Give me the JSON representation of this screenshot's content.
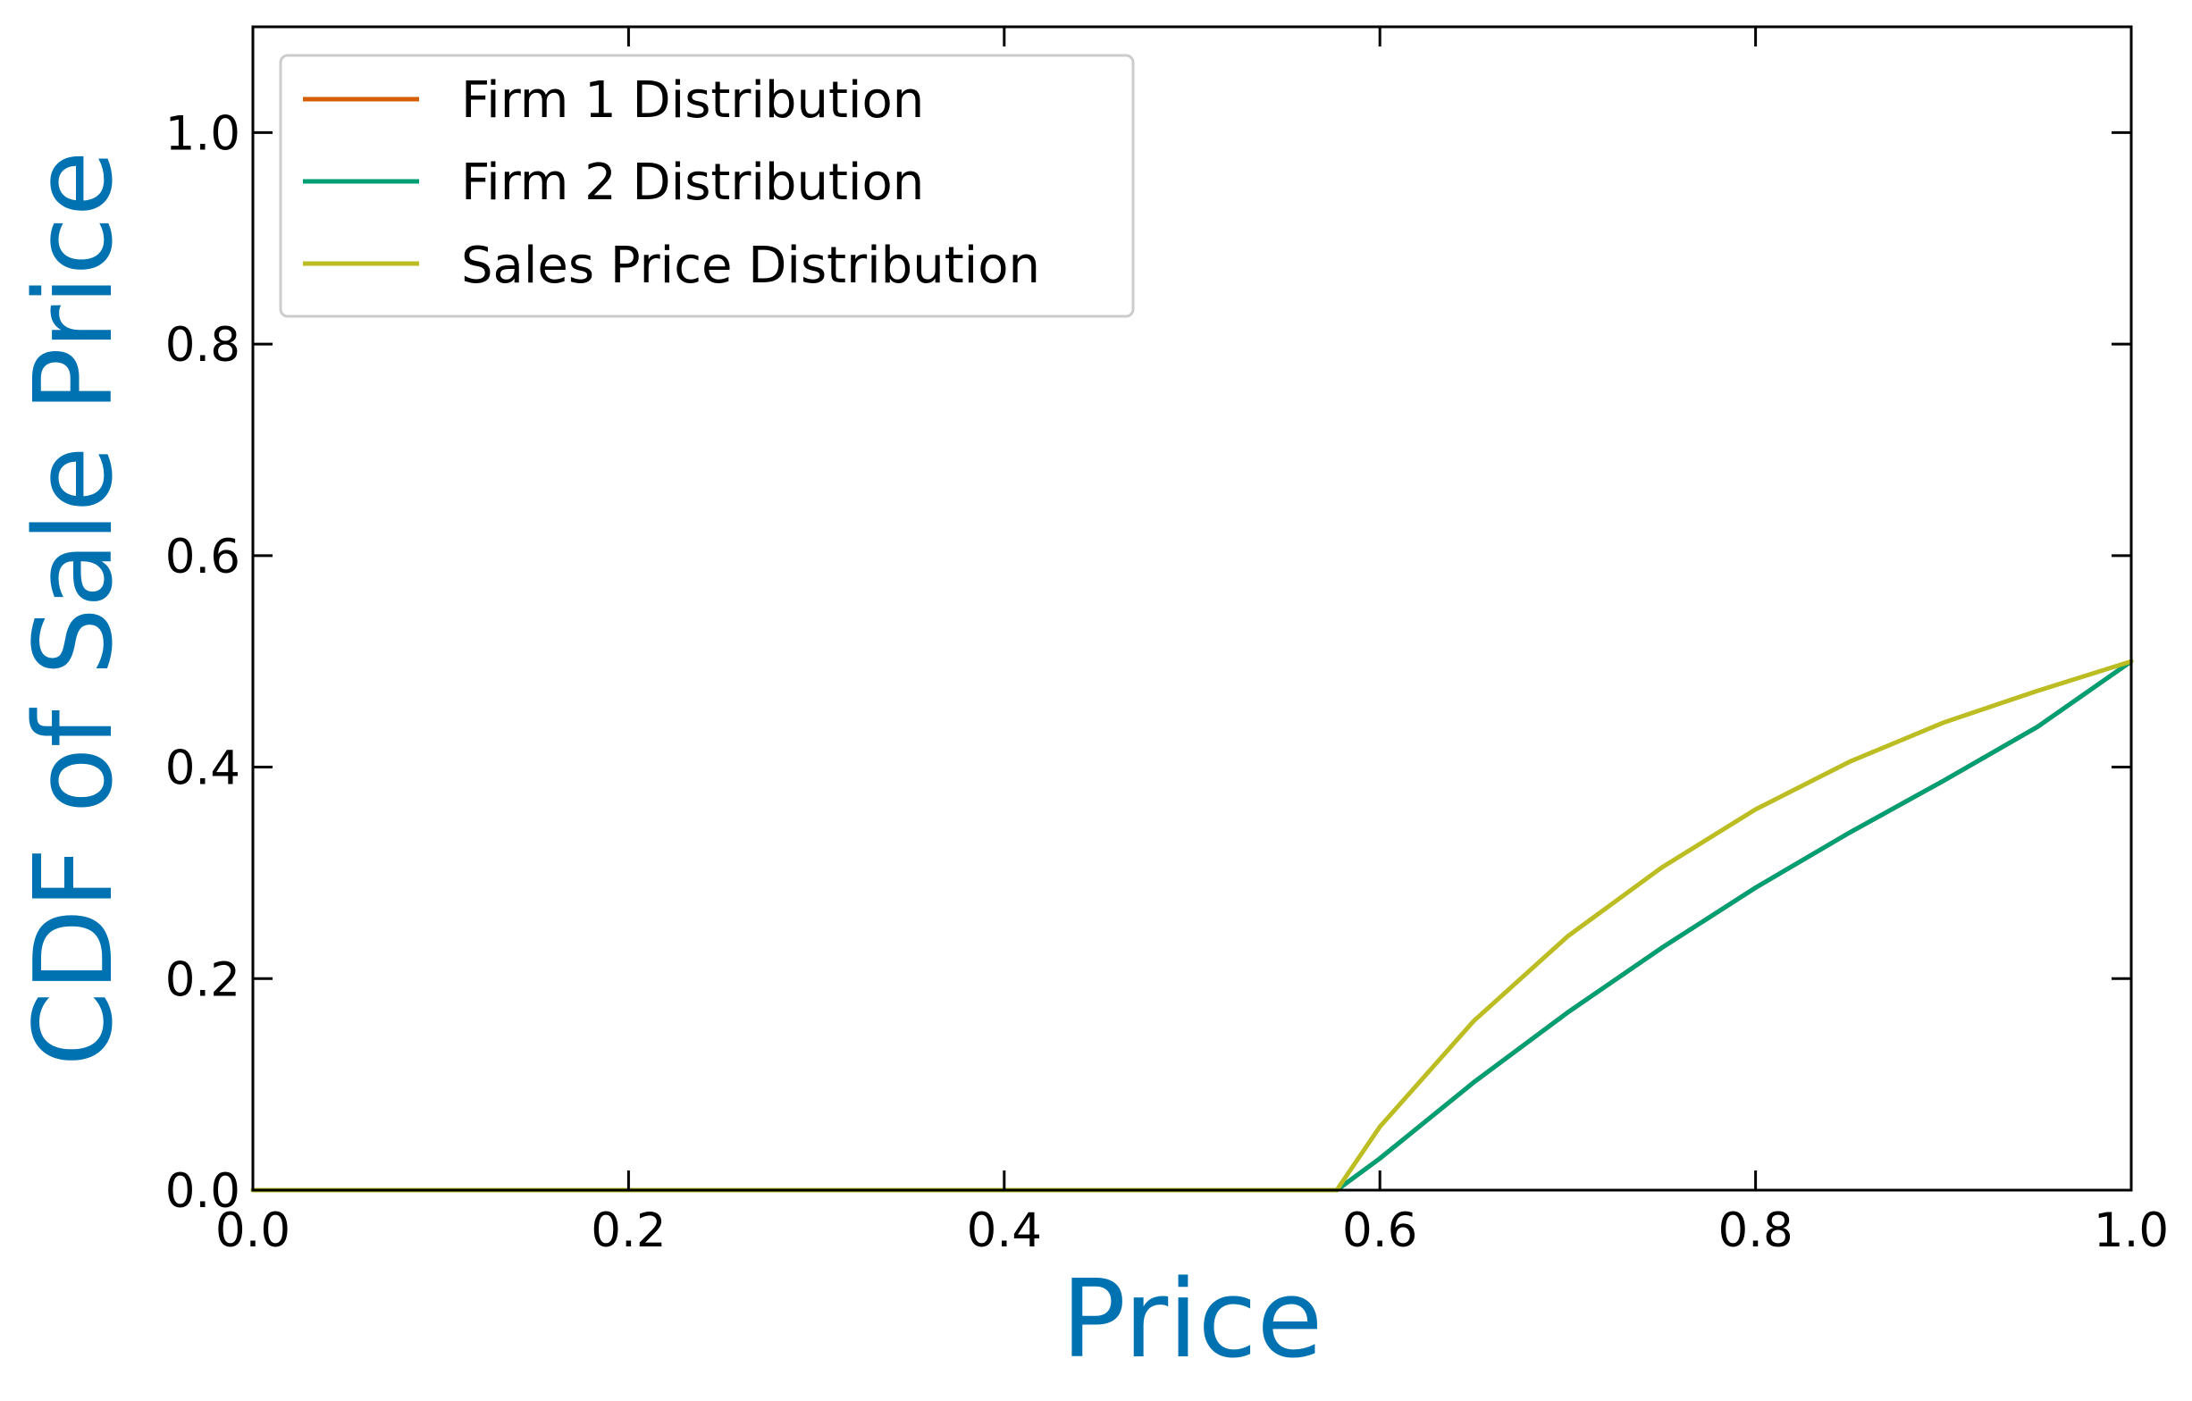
{
  "chart_data": {
    "type": "line",
    "xlabel": "Price",
    "ylabel": "CDF of Sale Price",
    "xlim": [
      0.0,
      1.0
    ],
    "ylim": [
      0.0,
      1.1
    ],
    "xticks": [
      "0.0",
      "0.2",
      "0.4",
      "0.6",
      "0.8",
      "1.0"
    ],
    "yticks": [
      "0.0",
      "0.2",
      "0.4",
      "0.6",
      "0.8",
      "1.0"
    ],
    "grid": false,
    "legend_position": "top-left",
    "axis_label_color": "#0072B2",
    "series": [
      {
        "name": "Firm 1 Distribution",
        "color": "#D55E00",
        "x": [
          0.0,
          0.1,
          0.2,
          0.3,
          0.4,
          0.5,
          0.577,
          0.6,
          0.65,
          0.7,
          0.75,
          0.8,
          0.85,
          0.9,
          0.95,
          1.0
        ],
        "y": [
          0.0,
          0.0,
          0.0,
          0.0,
          0.0,
          0.0,
          0.0,
          0.03,
          0.102,
          0.168,
          0.229,
          0.286,
          0.338,
          0.387,
          0.438,
          0.5
        ]
      },
      {
        "name": "Firm 2 Distribution",
        "color": "#009E73",
        "x": [
          0.0,
          0.1,
          0.2,
          0.3,
          0.4,
          0.5,
          0.577,
          0.6,
          0.65,
          0.7,
          0.75,
          0.8,
          0.85,
          0.9,
          0.95,
          1.0
        ],
        "y": [
          0.0,
          0.0,
          0.0,
          0.0,
          0.0,
          0.0,
          0.0,
          0.03,
          0.102,
          0.168,
          0.229,
          0.286,
          0.338,
          0.387,
          0.438,
          0.5
        ]
      },
      {
        "name": "Sales Price Distribution",
        "color": "#BCBD22",
        "x": [
          0.0,
          0.1,
          0.2,
          0.3,
          0.4,
          0.5,
          0.577,
          0.6,
          0.65,
          0.7,
          0.75,
          0.8,
          0.85,
          0.9,
          0.95,
          1.0
        ],
        "y": [
          0.0,
          0.0,
          0.0,
          0.0,
          0.0,
          0.0,
          0.0,
          0.06,
          0.16,
          0.24,
          0.305,
          0.36,
          0.405,
          0.442,
          0.472,
          0.5
        ]
      }
    ]
  }
}
